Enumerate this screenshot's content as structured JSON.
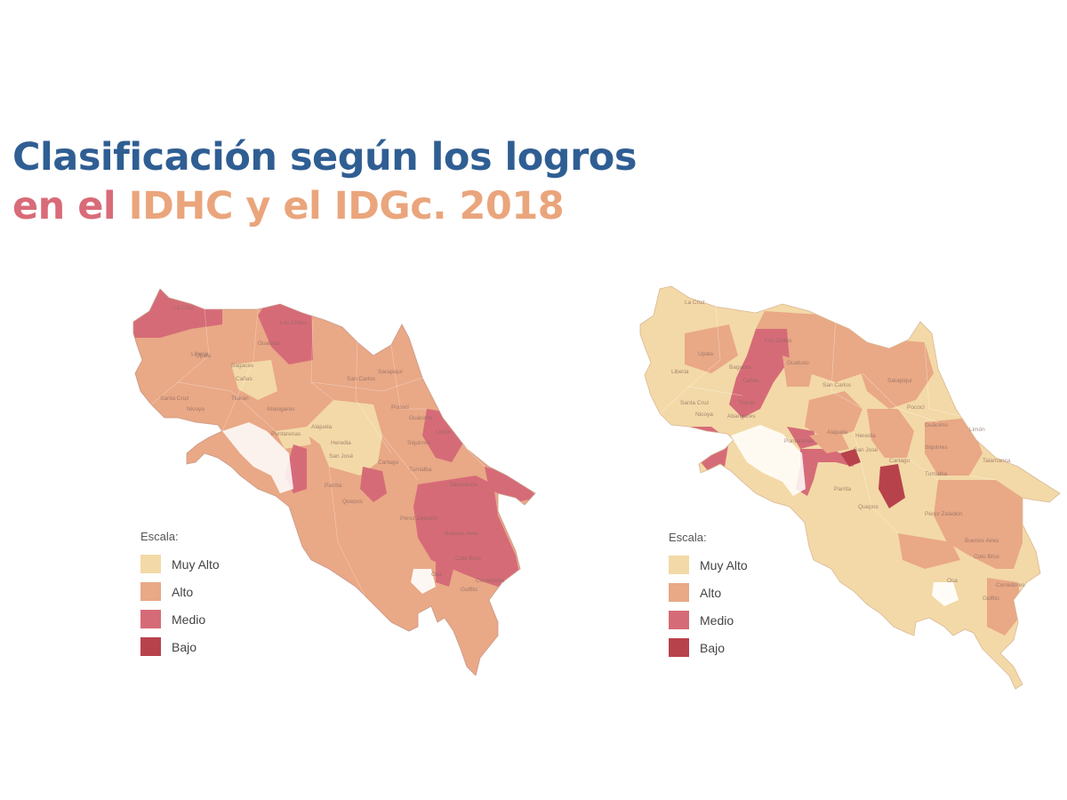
{
  "title": {
    "line1": "Clasificación según los logros",
    "line2_part1": "en el",
    "line2_part2": "IDHC y el IDGc. 2018"
  },
  "colors": {
    "title_blue": "#2f5e93",
    "title_pink": "#d96b78",
    "title_peach": "#eaa57c",
    "muy_alto": "#f3d9a7",
    "alto": "#e9a886",
    "medio": "#d66b78",
    "bajo": "#b8424c"
  },
  "legend": {
    "title": "Escala:",
    "items": [
      {
        "label": "Muy Alto",
        "color": "#f3d9a7"
      },
      {
        "label": "Alto",
        "color": "#e9a886"
      },
      {
        "label": "Medio",
        "color": "#d66b78"
      },
      {
        "label": "Bajo",
        "color": "#b8424c"
      }
    ]
  },
  "maps": {
    "left": {
      "places": [
        "La Cruz",
        "Upala",
        "Los Chiles",
        "Guatuso",
        "Cañas",
        "Tilarán",
        "Liberia",
        "Bagaces",
        "Abangares",
        "Santa Cruz",
        "Nicoya",
        "Puntarenas",
        "Alajuela",
        "San Carlos",
        "Sarapiquí",
        "Pococí",
        "Guácimo",
        "Siquirres",
        "Heredia",
        "San José",
        "Cartago",
        "Turrialba",
        "Limón",
        "Talamanca",
        "Parrita",
        "Quepos",
        "Pérez Zeledón",
        "Buenos Aires",
        "Osa",
        "Golfito",
        "Coto Brus",
        "Corredores"
      ]
    },
    "right": {
      "places": [
        "La Cruz",
        "Upala",
        "Los Chiles",
        "Guatuso",
        "Cañas",
        "Tilarán",
        "Liberia",
        "Bagaces",
        "Abangares",
        "Santa Cruz",
        "Nicoya",
        "Puntarenas",
        "Alajuela",
        "San Carlos",
        "Sarapiquí",
        "Pococí",
        "Guácimo",
        "Siquirres",
        "Heredia",
        "San José",
        "Cartago",
        "Turrialba",
        "Limón",
        "Talamanca",
        "Parrita",
        "Quepos",
        "Pérez Zeledón",
        "Buenos Aires",
        "Osa",
        "Golfito",
        "Coto Brus",
        "Corredores"
      ]
    }
  }
}
